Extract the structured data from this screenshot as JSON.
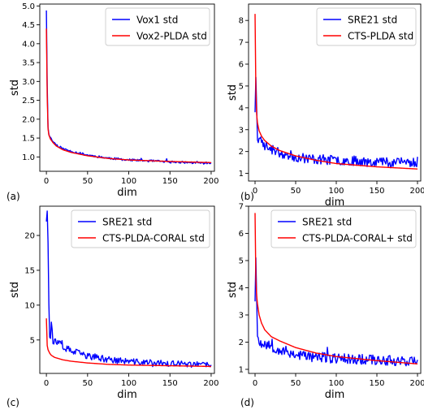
{
  "chart_data": [
    {
      "type": "line",
      "panel_label": "(a)",
      "xlabel": "dim",
      "ylabel": "std",
      "xlim": [
        -8,
        204
      ],
      "ylim": [
        0.62,
        5.05
      ],
      "xticks": [
        0,
        50,
        100,
        150,
        200
      ],
      "yticks": [
        1.0,
        1.5,
        2.0,
        2.5,
        3.0,
        3.5,
        4.0,
        4.5,
        5.0
      ],
      "ytick_labels": [
        "1.0",
        "1.5",
        "2.0",
        "2.5",
        "3.0",
        "3.5",
        "4.0",
        "4.5",
        "5.0"
      ],
      "legend_position": "top-right",
      "series": [
        {
          "name": "Vox1 std",
          "color": "#0000ff",
          "noise": 0.025,
          "seed": 11,
          "x": [
            0,
            1,
            2,
            3,
            5,
            8,
            12,
            20,
            30,
            50,
            75,
            100,
            150,
            200
          ],
          "y": [
            4.88,
            2.9,
            1.78,
            1.62,
            1.5,
            1.42,
            1.32,
            1.22,
            1.15,
            1.05,
            0.97,
            0.92,
            0.87,
            0.83
          ]
        },
        {
          "name": "Vox2-PLDA std",
          "color": "#ff0000",
          "noise": 0,
          "seed": 0,
          "x": [
            0,
            1,
            2,
            3,
            5,
            8,
            12,
            20,
            30,
            50,
            75,
            100,
            150,
            200
          ],
          "y": [
            4.4,
            2.6,
            1.75,
            1.58,
            1.47,
            1.38,
            1.29,
            1.19,
            1.12,
            1.03,
            0.96,
            0.92,
            0.88,
            0.85
          ]
        }
      ]
    },
    {
      "type": "line",
      "panel_label": "(b)",
      "xlabel": "dim",
      "ylabel": "std",
      "xlim": [
        -8,
        204
      ],
      "ylim": [
        0.65,
        8.75
      ],
      "xticks": [
        0,
        50,
        100,
        150,
        200
      ],
      "yticks": [
        1,
        2,
        3,
        4,
        5,
        6,
        7,
        8
      ],
      "ytick_labels": [
        "1",
        "2",
        "3",
        "4",
        "5",
        "6",
        "7",
        "8"
      ],
      "legend_position": "top-right",
      "series": [
        {
          "name": "SRE21 std",
          "color": "#0000ff",
          "noise": 0.18,
          "seed": 23,
          "x": [
            0,
            1,
            2,
            3,
            4,
            6,
            10,
            20,
            30,
            50,
            75,
            100,
            150,
            200
          ],
          "y": [
            3.8,
            5.4,
            4.0,
            2.6,
            2.4,
            2.5,
            2.35,
            2.1,
            1.95,
            1.75,
            1.65,
            1.6,
            1.55,
            1.5
          ]
        },
        {
          "name": "CTS-PLDA std",
          "color": "#ff0000",
          "noise": 0,
          "seed": 0,
          "x": [
            0,
            1,
            2,
            3,
            5,
            8,
            12,
            20,
            30,
            50,
            75,
            100,
            150,
            200
          ],
          "y": [
            8.3,
            4.8,
            3.7,
            3.3,
            2.95,
            2.7,
            2.5,
            2.25,
            2.05,
            1.8,
            1.6,
            1.45,
            1.3,
            1.2
          ]
        }
      ]
    },
    {
      "type": "line",
      "panel_label": "(c)",
      "xlabel": "dim",
      "ylabel": "std",
      "xlim": [
        -8,
        204
      ],
      "ylim": [
        0.2,
        24.2
      ],
      "xticks": [
        0,
        50,
        100,
        150,
        200
      ],
      "yticks": [
        5,
        10,
        15,
        20
      ],
      "ytick_labels": [
        "5",
        "10",
        "15",
        "20"
      ],
      "legend_position": "top-right",
      "series": [
        {
          "name": "SRE21 std",
          "color": "#0000ff",
          "noise": 0.35,
          "seed": 37,
          "x": [
            0,
            1,
            2,
            3,
            4,
            5,
            6,
            8,
            12,
            20,
            30,
            50,
            75,
            100,
            150,
            200
          ],
          "y": [
            22.0,
            23.5,
            19.0,
            10.0,
            6.0,
            5.5,
            7.5,
            5.0,
            4.6,
            4.0,
            3.4,
            2.7,
            2.2,
            1.9,
            1.6,
            1.4
          ]
        },
        {
          "name": "CTS-PLDA-CORAL std",
          "color": "#ff0000",
          "noise": 0,
          "seed": 0,
          "x": [
            0,
            1,
            2,
            4,
            6,
            10,
            20,
            30,
            50,
            75,
            100,
            150,
            200
          ],
          "y": [
            8.1,
            4.2,
            3.6,
            3.1,
            2.8,
            2.5,
            2.15,
            1.95,
            1.7,
            1.5,
            1.4,
            1.3,
            1.2
          ]
        }
      ]
    },
    {
      "type": "line",
      "panel_label": "(d)",
      "xlabel": "dim",
      "ylabel": "std",
      "xlim": [
        -8,
        204
      ],
      "ylim": [
        0.85,
        7.0
      ],
      "xticks": [
        0,
        50,
        100,
        150,
        200
      ],
      "yticks": [
        1,
        2,
        3,
        4,
        5,
        6,
        7
      ],
      "ytick_labels": [
        "1",
        "2",
        "3",
        "4",
        "5",
        "6",
        "7"
      ],
      "legend_position": "top-right",
      "series": [
        {
          "name": "SRE21 std",
          "color": "#0000ff",
          "noise": 0.16,
          "seed": 53,
          "x": [
            0,
            1,
            2,
            3,
            4,
            6,
            10,
            20,
            30,
            50,
            75,
            100,
            150,
            200
          ],
          "y": [
            3.5,
            5.1,
            3.6,
            2.4,
            2.1,
            2.0,
            2.0,
            1.85,
            1.72,
            1.55,
            1.45,
            1.4,
            1.35,
            1.3
          ]
        },
        {
          "name": "CTS-PLDA-CORAL+ std",
          "color": "#ff0000",
          "noise": 0,
          "seed": 0,
          "x": [
            0,
            1,
            2,
            3,
            5,
            8,
            12,
            20,
            30,
            50,
            75,
            100,
            150,
            200
          ],
          "y": [
            6.75,
            4.3,
            3.7,
            3.4,
            3.0,
            2.7,
            2.45,
            2.2,
            2.05,
            1.8,
            1.6,
            1.47,
            1.32,
            1.2
          ]
        }
      ]
    }
  ]
}
